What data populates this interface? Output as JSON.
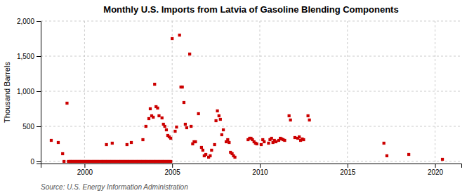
{
  "chart_data": {
    "type": "scatter",
    "title": "Monthly U.S. Imports from Latvia of Gasoline Blending Components",
    "ylabel": "Thousand Barrels",
    "annotations": [
      "Source: U.S. Energy Information Administration"
    ],
    "color": "#CC0000",
    "marker": "square",
    "grid": true,
    "xlim": [
      1997.5,
      2021.5
    ],
    "ylim": [
      -30,
      2000
    ],
    "xticks": [
      2000,
      2005,
      2010,
      2015,
      2020
    ],
    "yticks": [
      0,
      500,
      {
        "value": 1000,
        "label": "1,000"
      },
      {
        "value": 1500,
        "label": "1,500"
      },
      {
        "value": 2000,
        "label": "2,000"
      }
    ],
    "x": [
      1998.1,
      1998.5,
      1998.75,
      1999.0,
      1999.08,
      1999.17,
      1999.25,
      1999.33,
      1999.42,
      1999.5,
      1999.58,
      1999.67,
      1999.75,
      1999.83,
      1999.92,
      2000.0,
      2000.08,
      2000.17,
      2000.25,
      2000.33,
      2000.42,
      2000.5,
      2000.58,
      2000.67,
      2000.75,
      2000.83,
      2000.92,
      2001.0,
      2001.08,
      2001.17,
      2001.25,
      2001.33,
      2001.42,
      2001.5,
      2001.58,
      2001.67,
      2001.75,
      2001.83,
      2001.92,
      2002.0,
      2002.08,
      2002.17,
      2002.25,
      2002.33,
      2002.42,
      2002.5,
      2002.58,
      2002.67,
      2002.75,
      2002.83,
      2002.92,
      2003.0,
      2003.08,
      2003.17,
      2003.25,
      2003.33,
      2003.42,
      2003.5,
      2003.58,
      2003.67,
      2003.75,
      2003.83,
      2003.92,
      2004.0,
      2004.08,
      2004.17,
      2004.25,
      2004.33,
      2004.42,
      2004.5,
      2004.58,
      2004.67,
      2004.75,
      2004.83,
      2004.92,
      1998.83,
      2001.25,
      2001.58,
      2002.42,
      2002.67,
      2003.33,
      2003.5,
      2003.67,
      2003.75,
      2003.83,
      2003.92,
      2004.0,
      2004.08,
      2004.17,
      2004.25,
      2004.42,
      2004.5,
      2004.58,
      2004.67,
      2004.75,
      2004.83,
      2004.92,
      2005.0,
      2005.17,
      2005.25,
      2005.42,
      2005.5,
      2005.58,
      2005.67,
      2005.75,
      2005.83,
      2006.0,
      2006.08,
      2006.17,
      2006.25,
      2006.33,
      2006.5,
      2006.67,
      2006.75,
      2006.83,
      2006.92,
      2007.08,
      2007.17,
      2007.25,
      2007.42,
      2007.5,
      2007.58,
      2007.67,
      2007.75,
      2007.83,
      2007.92,
      2008.08,
      2008.17,
      2008.25,
      2008.33,
      2008.42,
      2008.5,
      2008.58,
      2009.33,
      2009.42,
      2009.5,
      2009.58,
      2009.67,
      2009.75,
      2009.83,
      2010.08,
      2010.17,
      2010.25,
      2010.5,
      2010.58,
      2010.67,
      2010.75,
      2010.83,
      2010.92,
      2011.08,
      2011.17,
      2011.25,
      2011.33,
      2011.42,
      2011.67,
      2011.75,
      2012.0,
      2012.17,
      2012.25,
      2012.33,
      2012.42,
      2012.5,
      2012.75,
      2012.83,
      2017.08,
      2017.25,
      2018.5,
      2020.42
    ],
    "values": [
      300,
      270,
      110,
      830,
      0,
      0,
      0,
      0,
      0,
      0,
      0,
      0,
      0,
      0,
      0,
      0,
      0,
      0,
      0,
      0,
      0,
      0,
      0,
      0,
      0,
      0,
      0,
      0,
      0,
      0,
      0,
      0,
      0,
      0,
      0,
      0,
      0,
      0,
      0,
      0,
      0,
      0,
      0,
      0,
      0,
      0,
      0,
      0,
      0,
      0,
      0,
      0,
      0,
      0,
      0,
      0,
      0,
      0,
      0,
      0,
      0,
      0,
      0,
      0,
      0,
      0,
      0,
      0,
      0,
      0,
      0,
      0,
      0,
      0,
      0,
      0,
      240,
      260,
      240,
      270,
      310,
      500,
      610,
      750,
      650,
      630,
      1100,
      780,
      760,
      650,
      620,
      530,
      500,
      450,
      370,
      350,
      330,
      1750,
      430,
      490,
      1800,
      1060,
      1060,
      840,
      530,
      480,
      1530,
      500,
      250,
      280,
      280,
      680,
      200,
      160,
      80,
      100,
      60,
      80,
      160,
      240,
      580,
      720,
      650,
      600,
      380,
      450,
      280,
      310,
      270,
      130,
      110,
      80,
      60,
      310,
      330,
      330,
      310,
      280,
      260,
      250,
      240,
      310,
      280,
      260,
      310,
      330,
      270,
      300,
      280,
      300,
      330,
      320,
      310,
      300,
      650,
      590,
      340,
      330,
      350,
      300,
      320,
      310,
      650,
      590,
      260,
      80,
      100,
      30
    ]
  }
}
